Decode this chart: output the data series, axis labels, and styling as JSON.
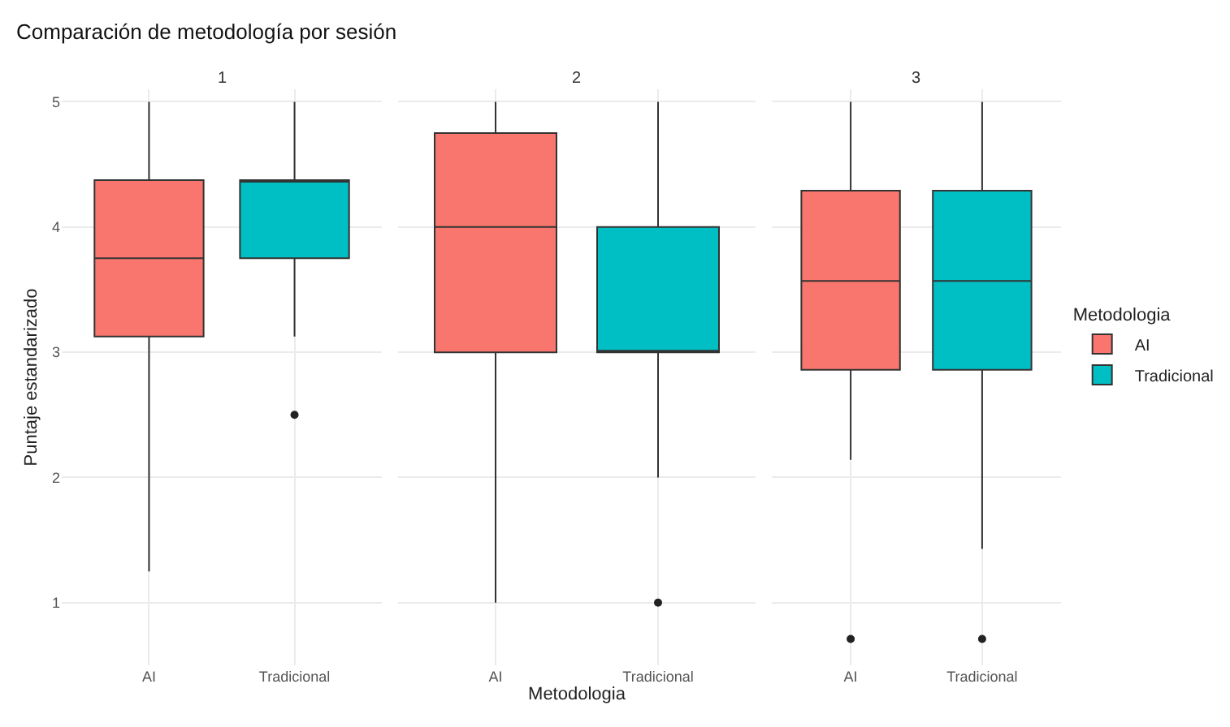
{
  "chart_data": [
    {
      "type": "box",
      "title": "Comparación de metodología por sesión",
      "subtitle": "1",
      "ylabel": "Puntaje estandarizado",
      "categories": [
        "AI",
        "Tradicional"
      ],
      "ylim": [
        0.5,
        5.1
      ],
      "yticks": [
        1,
        2,
        3,
        4,
        5
      ],
      "grid": true,
      "series": [
        {
          "color": "#f8766d",
          "boxes": [
            {
              "low": 1.25,
              "q1": 3.125,
              "median": 3.75,
              "q3": 4.375,
              "high": 5
            },
            null
          ]
        },
        {
          "color": "#00bfc4",
          "boxes": [
            null,
            {
              "low": 3.125,
              "q1": 3.75,
              "median": 4.375,
              "q3": 4.375,
              "high": 5,
              "outliers": [
                2.5
              ]
            }
          ]
        }
      ]
    },
    {
      "type": "box",
      "subtitle": "2",
      "xlabel": "Metodologia",
      "categories": [
        "AI",
        "Tradicional"
      ],
      "ylim": [
        0.5,
        5.1
      ],
      "yticks": [
        1,
        2,
        3,
        4,
        5
      ],
      "grid": true,
      "tick_labels": "x",
      "series": [
        {
          "color": "#f8766d",
          "boxes": [
            {
              "low": 1,
              "q1": 3,
              "median": 4,
              "q3": 4.75,
              "high": 5
            },
            null
          ]
        },
        {
          "color": "#00bfc4",
          "boxes": [
            null,
            {
              "low": 2,
              "q1": 3,
              "median": 3,
              "q3": 4,
              "high": 5,
              "outliers": [
                1
              ]
            }
          ]
        }
      ]
    },
    {
      "type": "box",
      "subtitle": "3",
      "legend_title": "Metodologia",
      "legend": "right",
      "categories": [
        "AI",
        "Tradicional"
      ],
      "ylim": [
        0.5,
        5.1
      ],
      "yticks": [
        1,
        2,
        3,
        4,
        5
      ],
      "grid": true,
      "tick_labels": "x",
      "series": [
        {
          "name": "AI",
          "color": "#f8766d",
          "boxes": [
            {
              "low": 2.14,
              "q1": 2.86,
              "median": 3.57,
              "q3": 4.29,
              "high": 5,
              "outliers": [
                0.71
              ]
            },
            null
          ]
        },
        {
          "name": "Tradicional",
          "color": "#00bfc4",
          "boxes": [
            null,
            {
              "low": 1.43,
              "q1": 2.86,
              "median": 3.57,
              "q3": 4.29,
              "high": 5,
              "outliers": [
                0.71
              ]
            }
          ]
        }
      ]
    }
  ]
}
